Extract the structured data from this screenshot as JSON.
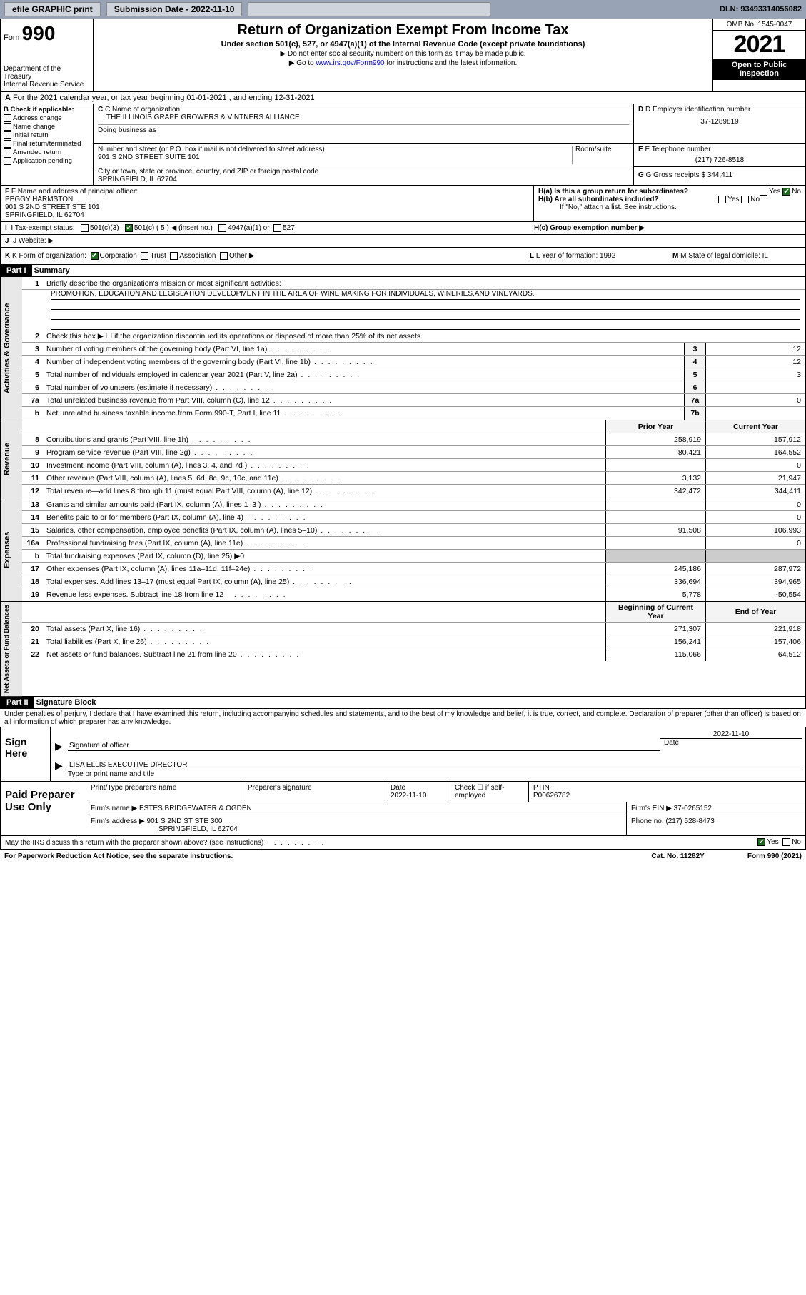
{
  "topbar": {
    "efile_label": "efile GRAPHIC print",
    "submission_label": "Submission Date - 2022-11-10",
    "dln": "DLN: 93493314056082"
  },
  "header": {
    "form_label": "Form",
    "form_num": "990",
    "dept": "Department of the Treasury",
    "irs": "Internal Revenue Service",
    "title": "Return of Organization Exempt From Income Tax",
    "sub": "Under section 501(c), 527, or 4947(a)(1) of the Internal Revenue Code (except private foundations)",
    "line1": "▶ Do not enter social security numbers on this form as it may be made public.",
    "line2_pre": "▶ Go to ",
    "line2_link": "www.irs.gov/Form990",
    "line2_post": " for instructions and the latest information.",
    "omb": "OMB No. 1545-0047",
    "year": "2021",
    "inspection": "Open to Public Inspection"
  },
  "rowA": {
    "text": "For the 2021 calendar year, or tax year beginning 01-01-2021    , and ending 12-31-2021",
    "a_label": "A"
  },
  "colB": {
    "hdr": "B Check if applicable:",
    "items": [
      "Address change",
      "Name change",
      "Initial return",
      "Final return/terminated",
      "Amended return",
      "Application pending"
    ]
  },
  "colC": {
    "name_label": "C Name of organization",
    "name": "THE ILLINOIS GRAPE GROWERS & VINTNERS ALLIANCE",
    "dba_label": "Doing business as",
    "addr_label": "Number and street (or P.O. box if mail is not delivered to street address)",
    "room_label": "Room/suite",
    "addr": "901 S 2ND STREET SUITE 101",
    "city_label": "City or town, state or province, country, and ZIP or foreign postal code",
    "city": "SPRINGFIELD, IL  62704"
  },
  "colD": {
    "label": "D Employer identification number",
    "val": "37-1289819"
  },
  "colE": {
    "label": "E Telephone number",
    "val": "(217) 726-8518"
  },
  "colG": {
    "label": "G Gross receipts $",
    "val": "344,411"
  },
  "rowF": {
    "label": "F  Name and address of principal officer:",
    "name": "PEGGY HARMSTON",
    "addr": "901 S 2ND STREET STE 101",
    "city": "SPRINGFIELD, IL  62704"
  },
  "rowH": {
    "a_label": "H(a)  Is this a group return for subordinates?",
    "a_yes": "Yes",
    "a_no": "No",
    "b_label": "H(b)  Are all subordinates included?",
    "b_yes": "Yes",
    "b_no": "No",
    "note": "If \"No,\" attach a list. See instructions.",
    "c_label": "H(c)  Group exemption number ▶"
  },
  "rowI": {
    "label": "I  Tax-exempt status:",
    "c3": "501(c)(3)",
    "c5_pre": "501(c) ( 5 ) ◀ (insert no.)",
    "a1": "4947(a)(1) or",
    "s527": "527"
  },
  "rowJ": {
    "label": "J  Website: ▶"
  },
  "rowK": {
    "label": "K Form of organization:",
    "corp": "Corporation",
    "trust": "Trust",
    "assoc": "Association",
    "other": "Other ▶",
    "l_label": "L Year of formation: 1992",
    "m_label": "M State of legal domicile: IL"
  },
  "part1": {
    "hdr": "Part I",
    "title": "Summary",
    "q1": "Briefly describe the organization's mission or most significant activities:",
    "mission": "PROMOTION, EDUCATION AND LEGISLATION DEVELOPMENT IN THE AREA OF WINE MAKING FOR INDIVIDUALS, WINERIES,AND VINEYARDS.",
    "q2": "Check this box ▶ ☐  if the organization discontinued its operations or disposed of more than 25% of its net assets.",
    "lines_gov": [
      {
        "n": "3",
        "t": "Number of voting members of the governing body (Part VI, line 1a)",
        "b": "3",
        "v": "12"
      },
      {
        "n": "4",
        "t": "Number of independent voting members of the governing body (Part VI, line 1b)",
        "b": "4",
        "v": "12"
      },
      {
        "n": "5",
        "t": "Total number of individuals employed in calendar year 2021 (Part V, line 2a)",
        "b": "5",
        "v": "3"
      },
      {
        "n": "6",
        "t": "Total number of volunteers (estimate if necessary)",
        "b": "6",
        "v": ""
      },
      {
        "n": "7a",
        "t": "Total unrelated business revenue from Part VIII, column (C), line 12",
        "b": "7a",
        "v": "0"
      },
      {
        "n": "b",
        "t": "Net unrelated business taxable income from Form 990-T, Part I, line 11",
        "b": "7b",
        "v": ""
      }
    ],
    "col_prior": "Prior Year",
    "col_curr": "Current Year",
    "lines_rev": [
      {
        "n": "8",
        "t": "Contributions and grants (Part VIII, line 1h)",
        "p": "258,919",
        "c": "157,912"
      },
      {
        "n": "9",
        "t": "Program service revenue (Part VIII, line 2g)",
        "p": "80,421",
        "c": "164,552"
      },
      {
        "n": "10",
        "t": "Investment income (Part VIII, column (A), lines 3, 4, and 7d )",
        "p": "",
        "c": "0"
      },
      {
        "n": "11",
        "t": "Other revenue (Part VIII, column (A), lines 5, 6d, 8c, 9c, 10c, and 11e)",
        "p": "3,132",
        "c": "21,947"
      },
      {
        "n": "12",
        "t": "Total revenue—add lines 8 through 11 (must equal Part VIII, column (A), line 12)",
        "p": "342,472",
        "c": "344,411"
      }
    ],
    "lines_exp": [
      {
        "n": "13",
        "t": "Grants and similar amounts paid (Part IX, column (A), lines 1–3 )",
        "p": "",
        "c": "0"
      },
      {
        "n": "14",
        "t": "Benefits paid to or for members (Part IX, column (A), line 4)",
        "p": "",
        "c": "0"
      },
      {
        "n": "15",
        "t": "Salaries, other compensation, employee benefits (Part IX, column (A), lines 5–10)",
        "p": "91,508",
        "c": "106,993"
      },
      {
        "n": "16a",
        "t": "Professional fundraising fees (Part IX, column (A), line 11e)",
        "p": "",
        "c": "0"
      },
      {
        "n": "b",
        "t": "Total fundraising expenses (Part IX, column (D), line 25) ▶0",
        "p": "",
        "c": ""
      },
      {
        "n": "17",
        "t": "Other expenses (Part IX, column (A), lines 11a–11d, 11f–24e)",
        "p": "245,186",
        "c": "287,972"
      },
      {
        "n": "18",
        "t": "Total expenses. Add lines 13–17 (must equal Part IX, column (A), line 25)",
        "p": "336,694",
        "c": "394,965"
      },
      {
        "n": "19",
        "t": "Revenue less expenses. Subtract line 18 from line 12",
        "p": "5,778",
        "c": "-50,554"
      }
    ],
    "col_beg": "Beginning of Current Year",
    "col_end": "End of Year",
    "lines_net": [
      {
        "n": "20",
        "t": "Total assets (Part X, line 16)",
        "p": "271,307",
        "c": "221,918"
      },
      {
        "n": "21",
        "t": "Total liabilities (Part X, line 26)",
        "p": "156,241",
        "c": "157,406"
      },
      {
        "n": "22",
        "t": "Net assets or fund balances. Subtract line 21 from line 20",
        "p": "115,066",
        "c": "64,512"
      }
    ],
    "side_gov": "Activities & Governance",
    "side_rev": "Revenue",
    "side_exp": "Expenses",
    "side_net": "Net Assets or Fund Balances"
  },
  "part2": {
    "hdr": "Part II",
    "title": "Signature Block",
    "decl": "Under penalties of perjury, I declare that I have examined this return, including accompanying schedules and statements, and to the best of my knowledge and belief, it is true, correct, and complete. Declaration of preparer (other than officer) is based on all information of which preparer has any knowledge.",
    "sign_here": "Sign Here",
    "sig_officer": "Signature of officer",
    "sig_date": "2022-11-10",
    "date_label": "Date",
    "name_title": "LISA ELLIS  EXECUTIVE DIRECTOR",
    "type_label": "Type or print name and title",
    "paid": "Paid Preparer Use Only",
    "prep_name_label": "Print/Type preparer's name",
    "prep_sig_label": "Preparer's signature",
    "prep_date_label": "Date",
    "prep_date": "2022-11-10",
    "check_if": "Check ☐ if self-employed",
    "ptin_label": "PTIN",
    "ptin": "P00626782",
    "firm_name_label": "Firm's name    ▶",
    "firm_name": "ESTES BRIDGEWATER & OGDEN",
    "firm_ein_label": "Firm's EIN ▶",
    "firm_ein": "37-0265152",
    "firm_addr_label": "Firm's address ▶",
    "firm_addr": "901 S 2ND ST STE 300",
    "firm_city": "SPRINGFIELD, IL  62704",
    "phone_label": "Phone no.",
    "phone": "(217) 528-8473",
    "discuss": "May the IRS discuss this return with the preparer shown above? (see instructions)",
    "yes": "Yes",
    "no": "No"
  },
  "footer": {
    "left": "For Paperwork Reduction Act Notice, see the separate instructions.",
    "mid": "Cat. No. 11282Y",
    "right": "Form 990 (2021)"
  }
}
